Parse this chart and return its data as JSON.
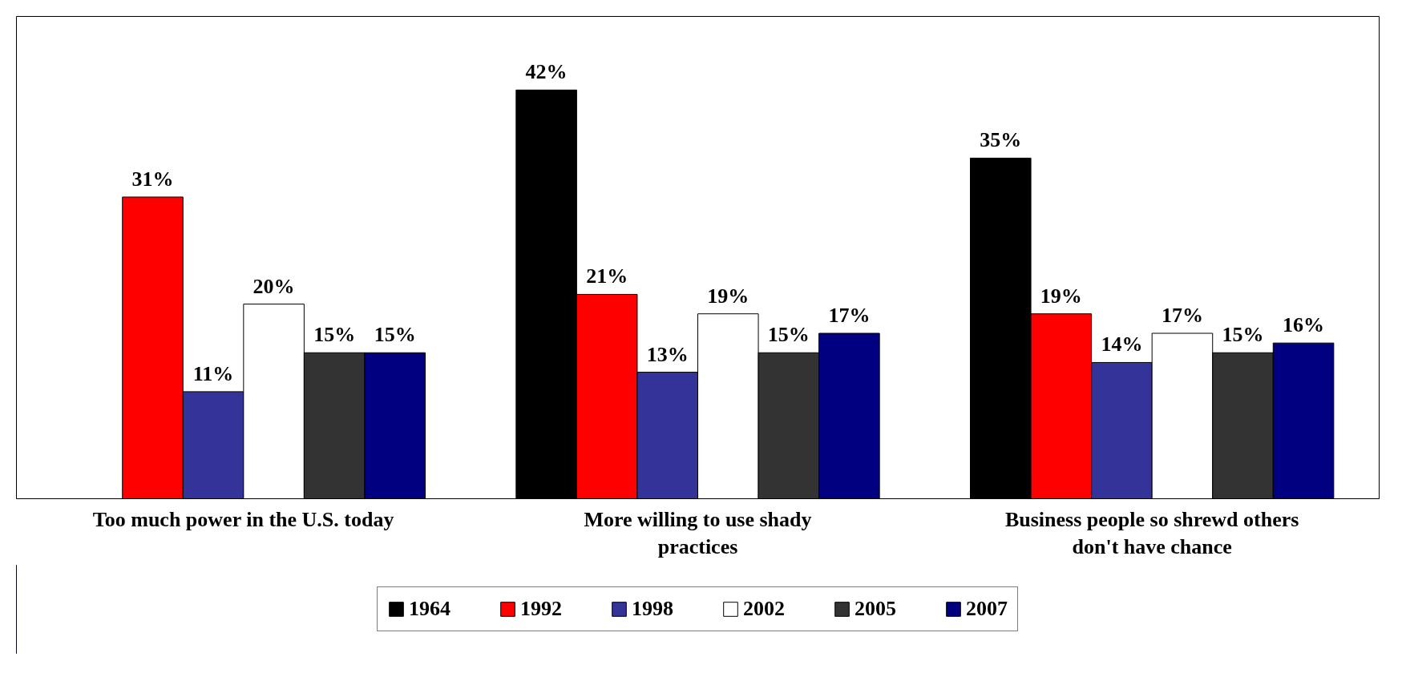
{
  "chart_data": {
    "type": "bar",
    "categories": [
      "Too much power in the U.S. today",
      "More willing to use shady practices",
      "Business people so shrewd others don't have chance"
    ],
    "series": [
      {
        "name": "1964",
        "color": "#000000",
        "values": [
          null,
          42,
          35
        ],
        "value_labels": [
          null,
          "42%",
          "35%"
        ]
      },
      {
        "name": "1992",
        "color": "#ff0000",
        "values": [
          31,
          21,
          19
        ],
        "value_labels": [
          "31%",
          "21%",
          "19%"
        ]
      },
      {
        "name": "1998",
        "color": "#333399",
        "values": [
          11,
          13,
          14
        ],
        "value_labels": [
          "11%",
          "13%",
          "14%"
        ]
      },
      {
        "name": "2002",
        "color": "#ffffff",
        "values": [
          20,
          19,
          17
        ],
        "value_labels": [
          "20%",
          "19%",
          "17%"
        ]
      },
      {
        "name": "2005",
        "color": "#333333",
        "values": [
          15,
          15,
          15
        ],
        "value_labels": [
          "15%",
          "15%",
          "15%"
        ]
      },
      {
        "name": "2007",
        "color": "#000080",
        "values": [
          15,
          17,
          16
        ],
        "value_labels": [
          "15%",
          "17%",
          "16%"
        ]
      }
    ],
    "legend": "bottom",
    "grid": false
  }
}
